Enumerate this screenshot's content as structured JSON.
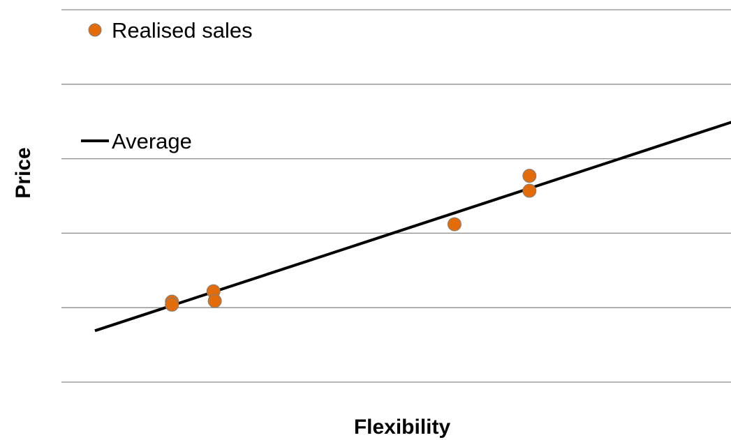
{
  "chart_data": {
    "type": "scatter",
    "xlabel": "Flexibility",
    "ylabel": "Price",
    "grid": true,
    "legend_placement": "top-left",
    "colors": {
      "points": "#E36C0A",
      "point_outline": "#7F7F7F",
      "line": "#000000",
      "grid": "#8C8C8C"
    },
    "xlim": [
      0,
      10
    ],
    "ylim": [
      0,
      5
    ],
    "series": [
      {
        "name": "Realised sales",
        "kind": "points",
        "points": [
          {
            "x": 1.65,
            "y": 1.08
          },
          {
            "x": 1.65,
            "y": 1.04
          },
          {
            "x": 2.27,
            "y": 1.22
          },
          {
            "x": 2.29,
            "y": 1.09
          },
          {
            "x": 5.87,
            "y": 2.12
          },
          {
            "x": 6.99,
            "y": 2.77
          },
          {
            "x": 6.99,
            "y": 2.57
          }
        ]
      },
      {
        "name": "Average",
        "kind": "line",
        "points": [
          {
            "x": 0.5,
            "y": 0.69
          },
          {
            "x": 10.48,
            "y": 3.63
          }
        ]
      }
    ]
  }
}
